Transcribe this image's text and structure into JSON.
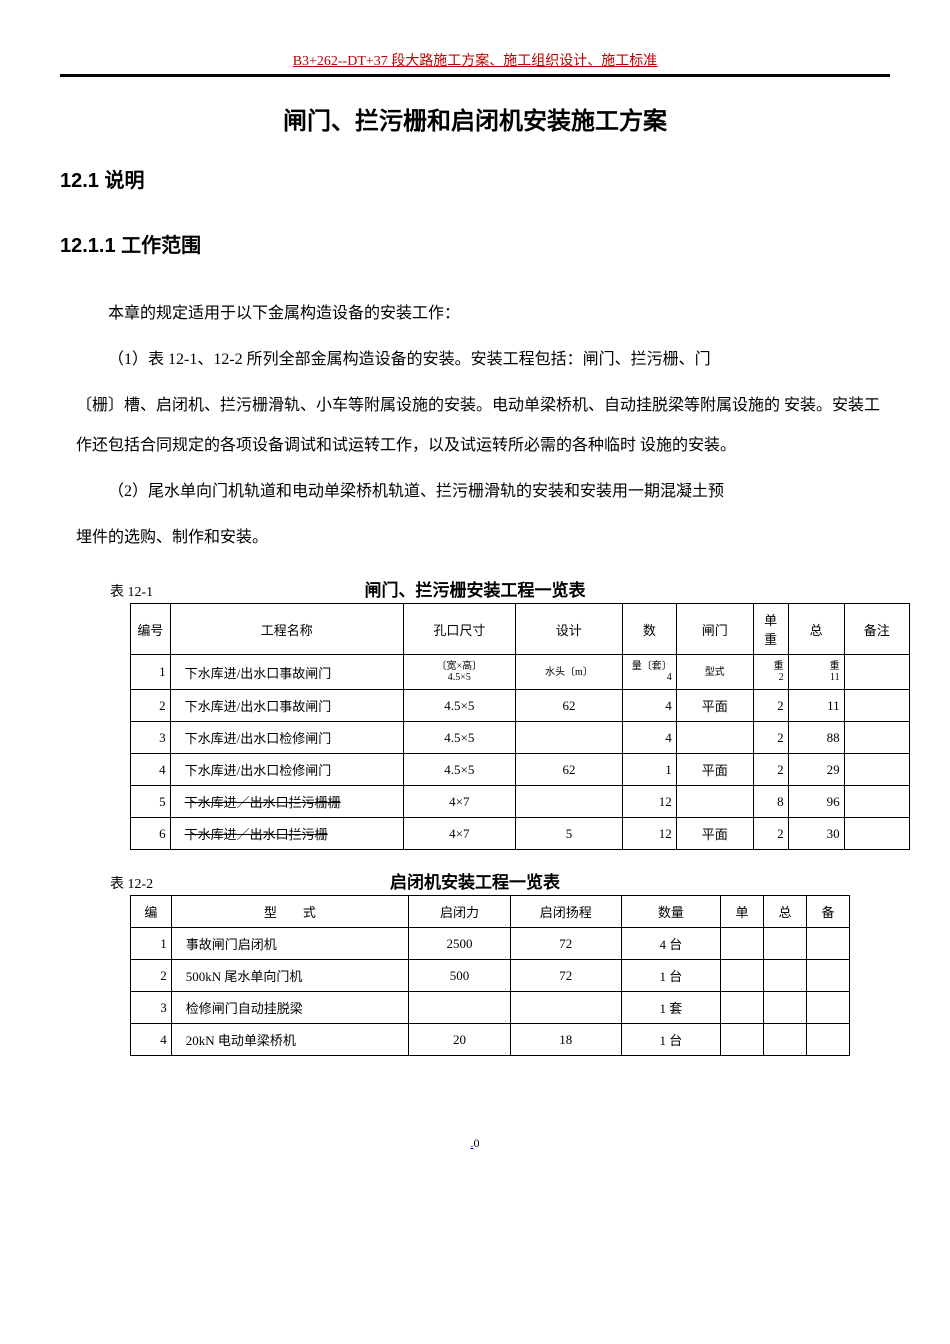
{
  "header": "B3+262--DT+37 段大路施工方案、施工组织设计、施工标准",
  "title": "闸门、拦污栅和启闭机安装施工方案",
  "h1": "12.1 说明",
  "h2": "12.1.1 工作范围",
  "para1": "本章的规定适用于以下金属构造设备的安装工作：",
  "para2a": "（1）表 12-1、12-2 所列全部金属构造设备的安装。安装工程包括：闸门、拦污栅、门",
  "para2b": "〔栅〕槽、启闭机、拦污栅滑轨、小车等附属设施的安装。电动单梁桥机、自动挂脱梁等附属设施的 安装。安装工作还包括合同规定的各项设备调试和试运转工作，以及试运转所必需的各种临时 设施的安装。",
  "para3a": "（2）尾水单向门机轨道和电动单梁桥机轨道、拦污栅滑轨的安装和安装用一期混凝土预",
  "para3b": "埋件的选购、制作和安装。",
  "table1": {
    "label": "表 12-1",
    "caption": "闸门、拦污栅安装工程一览表",
    "headers": [
      "编号",
      "工程名称",
      "孔口尺寸",
      "设计",
      "数",
      "闸门",
      "单重",
      "总",
      "备注"
    ],
    "subheaders": [
      "〔宽×高〕",
      "水头〔m〕",
      "量〔套〕",
      "型式",
      "重",
      "重"
    ],
    "rows": [
      {
        "no": "1",
        "name": "下水库进/出水口事故闸门",
        "size": "4.5×5",
        "head": "",
        "qty": "4",
        "type": "",
        "unit": "2",
        "total": "11",
        "remark": ""
      },
      {
        "no": "2",
        "name": "下水库进/出水口事故闸门",
        "size": "4.5×5",
        "head": "62",
        "qty": "4",
        "type": "平面",
        "unit": "2",
        "total": "11",
        "remark": ""
      },
      {
        "no": "3",
        "name": "下水库进/出水口检修闸门",
        "size": "4.5×5",
        "head": "",
        "qty": "4",
        "type": "",
        "unit": "2",
        "total": "88",
        "remark": ""
      },
      {
        "no": "4",
        "name": "下水库进/出水口检修闸门",
        "size": "4.5×5",
        "head": "62",
        "qty": "1",
        "type": "平面",
        "unit": "2",
        "total": "29",
        "remark": ""
      },
      {
        "no": "5",
        "name": "下水库进／出水口拦污栅栅",
        "size": "4×7",
        "head": "",
        "qty": "12",
        "type": "",
        "unit": "8",
        "total": "96",
        "remark": "",
        "strike": true
      },
      {
        "no": "6",
        "name": "下水库进／出水口拦污栅",
        "size": "4×7",
        "head": "5",
        "qty": "12",
        "type": "平面",
        "unit": "2",
        "total": "30",
        "remark": "",
        "strike": true
      }
    ]
  },
  "table2": {
    "label": "表 12-2",
    "caption": "启闭机安装工程一览表",
    "headers": [
      "编",
      "型　　式",
      "启闭力",
      "启闭扬程",
      "数量",
      "单",
      "总",
      "备"
    ],
    "rows": [
      {
        "no": "1",
        "name": "事故闸门启闭机",
        "f1": "2500",
        "f2": "72",
        "qty": "4 台",
        "unit": "",
        "total": "",
        "remark": ""
      },
      {
        "no": "2",
        "name": "500kN 尾水单向门机",
        "f1": "500",
        "f2": "72",
        "qty": "1 台",
        "unit": "",
        "total": "",
        "remark": ""
      },
      {
        "no": "3",
        "name": "检修闸门自动挂脱梁",
        "f1": "",
        "f2": "",
        "qty": "1 套",
        "unit": "",
        "total": "",
        "remark": ""
      },
      {
        "no": "4",
        "name": "20kN 电动单梁桥机",
        "f1": "20",
        "f2": "18",
        "qty": "1 台",
        "unit": "",
        "total": "",
        "remark": ""
      }
    ]
  },
  "footer": {
    "link": ".",
    "page": "0"
  }
}
